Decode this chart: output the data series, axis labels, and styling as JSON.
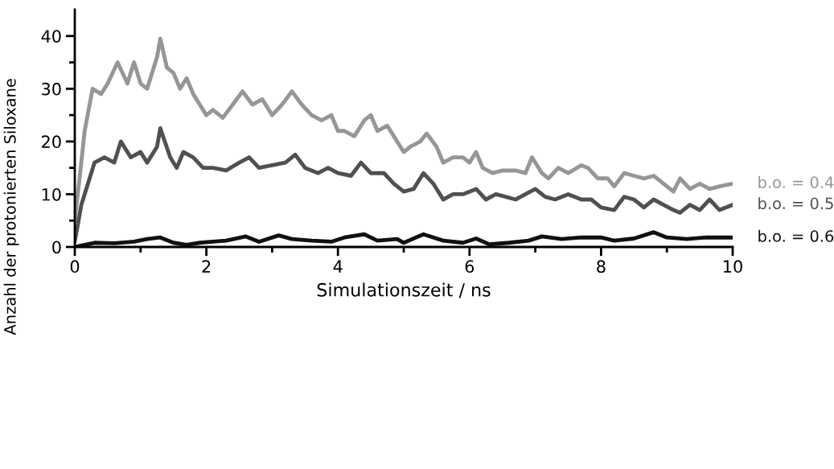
{
  "chart_data": {
    "type": "line",
    "xlabel": "Simulationszeit / ns",
    "ylabel": "Anzahl der protonierten Siloxane",
    "xlim": [
      0,
      10
    ],
    "ylim": [
      0,
      45
    ],
    "xticks": [
      0,
      {
        "value": 1,
        "label": null
      },
      2,
      {
        "value": 3,
        "label": null
      },
      4,
      {
        "value": 5,
        "label": null
      },
      6,
      {
        "value": 7,
        "label": null
      },
      8,
      {
        "value": 9,
        "label": null
      },
      10
    ],
    "yticks": [
      0,
      {
        "value": 5,
        "label": null
      },
      10,
      {
        "value": 15,
        "label": null
      },
      20,
      {
        "value": 25,
        "label": null
      },
      30,
      {
        "value": 35,
        "label": null
      },
      40
    ],
    "grid": false,
    "legend": false,
    "line_style": "solid",
    "marker": "none",
    "series": [
      {
        "name": "b.o. = 0.4",
        "color": "#969696",
        "x": [
          0,
          0.09,
          0.15,
          0.27,
          0.4,
          0.5,
          0.65,
          0.8,
          0.9,
          1.0,
          1.1,
          1.25,
          1.3,
          1.4,
          1.5,
          1.6,
          1.7,
          1.8,
          1.9,
          2.0,
          2.1,
          2.25,
          2.4,
          2.55,
          2.7,
          2.85,
          3.0,
          3.15,
          3.3,
          3.45,
          3.6,
          3.75,
          3.9,
          4.0,
          4.1,
          4.25,
          4.4,
          4.5,
          4.6,
          4.75,
          4.9,
          5.0,
          5.1,
          5.25,
          5.35,
          5.5,
          5.6,
          5.75,
          5.9,
          6.0,
          6.1,
          6.2,
          6.35,
          6.5,
          6.7,
          6.85,
          6.95,
          7.1,
          7.2,
          7.35,
          7.5,
          7.7,
          7.8,
          7.95,
          8.1,
          8.2,
          8.35,
          8.5,
          8.65,
          8.8,
          8.95,
          9.1,
          9.2,
          9.35,
          9.5,
          9.65,
          9.8,
          10
        ],
        "values": [
          5,
          15,
          22,
          30,
          29,
          31,
          35,
          31,
          35,
          31,
          30,
          36,
          39.5,
          34,
          33,
          30,
          32,
          29,
          27,
          25,
          26,
          24.5,
          27,
          29.5,
          27,
          28,
          25,
          27,
          29.5,
          27,
          25,
          24,
          25,
          22,
          22,
          21,
          24,
          25,
          22,
          23,
          20,
          18,
          19,
          20,
          21.5,
          19,
          16,
          17,
          17,
          16,
          18,
          15,
          14,
          14.5,
          14.5,
          14,
          17,
          14,
          13,
          15,
          14,
          15.5,
          15,
          13,
          13,
          11.5,
          14,
          13.5,
          13,
          13.5,
          12,
          10.5,
          13,
          11,
          12,
          11,
          11.5,
          12
        ]
      },
      {
        "name": "b.o. = 0.5",
        "color": "#505050",
        "x": [
          0,
          0.1,
          0.2,
          0.3,
          0.45,
          0.6,
          0.7,
          0.85,
          1.0,
          1.1,
          1.25,
          1.3,
          1.45,
          1.55,
          1.65,
          1.8,
          1.95,
          2.1,
          2.3,
          2.5,
          2.65,
          2.8,
          3.0,
          3.2,
          3.35,
          3.5,
          3.7,
          3.85,
          4.0,
          4.2,
          4.35,
          4.5,
          4.7,
          4.85,
          5.0,
          5.15,
          5.3,
          5.45,
          5.6,
          5.75,
          5.9,
          6.1,
          6.25,
          6.4,
          6.55,
          6.7,
          6.85,
          7.0,
          7.15,
          7.3,
          7.5,
          7.7,
          7.85,
          8.0,
          8.2,
          8.35,
          8.5,
          8.65,
          8.8,
          8.95,
          9.1,
          9.2,
          9.35,
          9.5,
          9.65,
          9.8,
          10
        ],
        "values": [
          1,
          8,
          12,
          16,
          17,
          16,
          20,
          17,
          18,
          16,
          19,
          22.5,
          17,
          15,
          18,
          17,
          15,
          15,
          14.5,
          16,
          17,
          15,
          15.5,
          16,
          17.5,
          15,
          14,
          15,
          14,
          13.5,
          16,
          14,
          14,
          12,
          10.5,
          11,
          14,
          12,
          9,
          10,
          10,
          11,
          9,
          10,
          9.5,
          9,
          10,
          11,
          9.5,
          9,
          10,
          9,
          9,
          7.5,
          7,
          9.5,
          9,
          7.5,
          9,
          8,
          7,
          6.5,
          8,
          7,
          9,
          7,
          8
        ]
      },
      {
        "name": "b.o. = 0.6",
        "color": "#111111",
        "x": [
          0,
          0.3,
          0.6,
          0.9,
          1.1,
          1.3,
          1.5,
          1.7,
          1.9,
          2.1,
          2.3,
          2.6,
          2.8,
          3.1,
          3.3,
          3.6,
          3.9,
          4.1,
          4.4,
          4.6,
          4.9,
          5.0,
          5.3,
          5.6,
          5.9,
          6.1,
          6.3,
          6.6,
          6.9,
          7.1,
          7.4,
          7.7,
          8.0,
          8.2,
          8.5,
          8.8,
          9.0,
          9.3,
          9.6,
          10
        ],
        "values": [
          0,
          0.8,
          0.7,
          1.0,
          1.5,
          1.8,
          0.8,
          0.4,
          0.8,
          1.0,
          1.2,
          2.0,
          1.0,
          2.2,
          1.5,
          1.2,
          1.0,
          1.8,
          2.4,
          1.2,
          1.5,
          0.8,
          2.4,
          1.2,
          0.8,
          1.6,
          0.5,
          0.8,
          1.2,
          2.0,
          1.5,
          1.8,
          1.8,
          1.2,
          1.6,
          2.8,
          1.8,
          1.5,
          1.8,
          1.8
        ]
      }
    ]
  }
}
